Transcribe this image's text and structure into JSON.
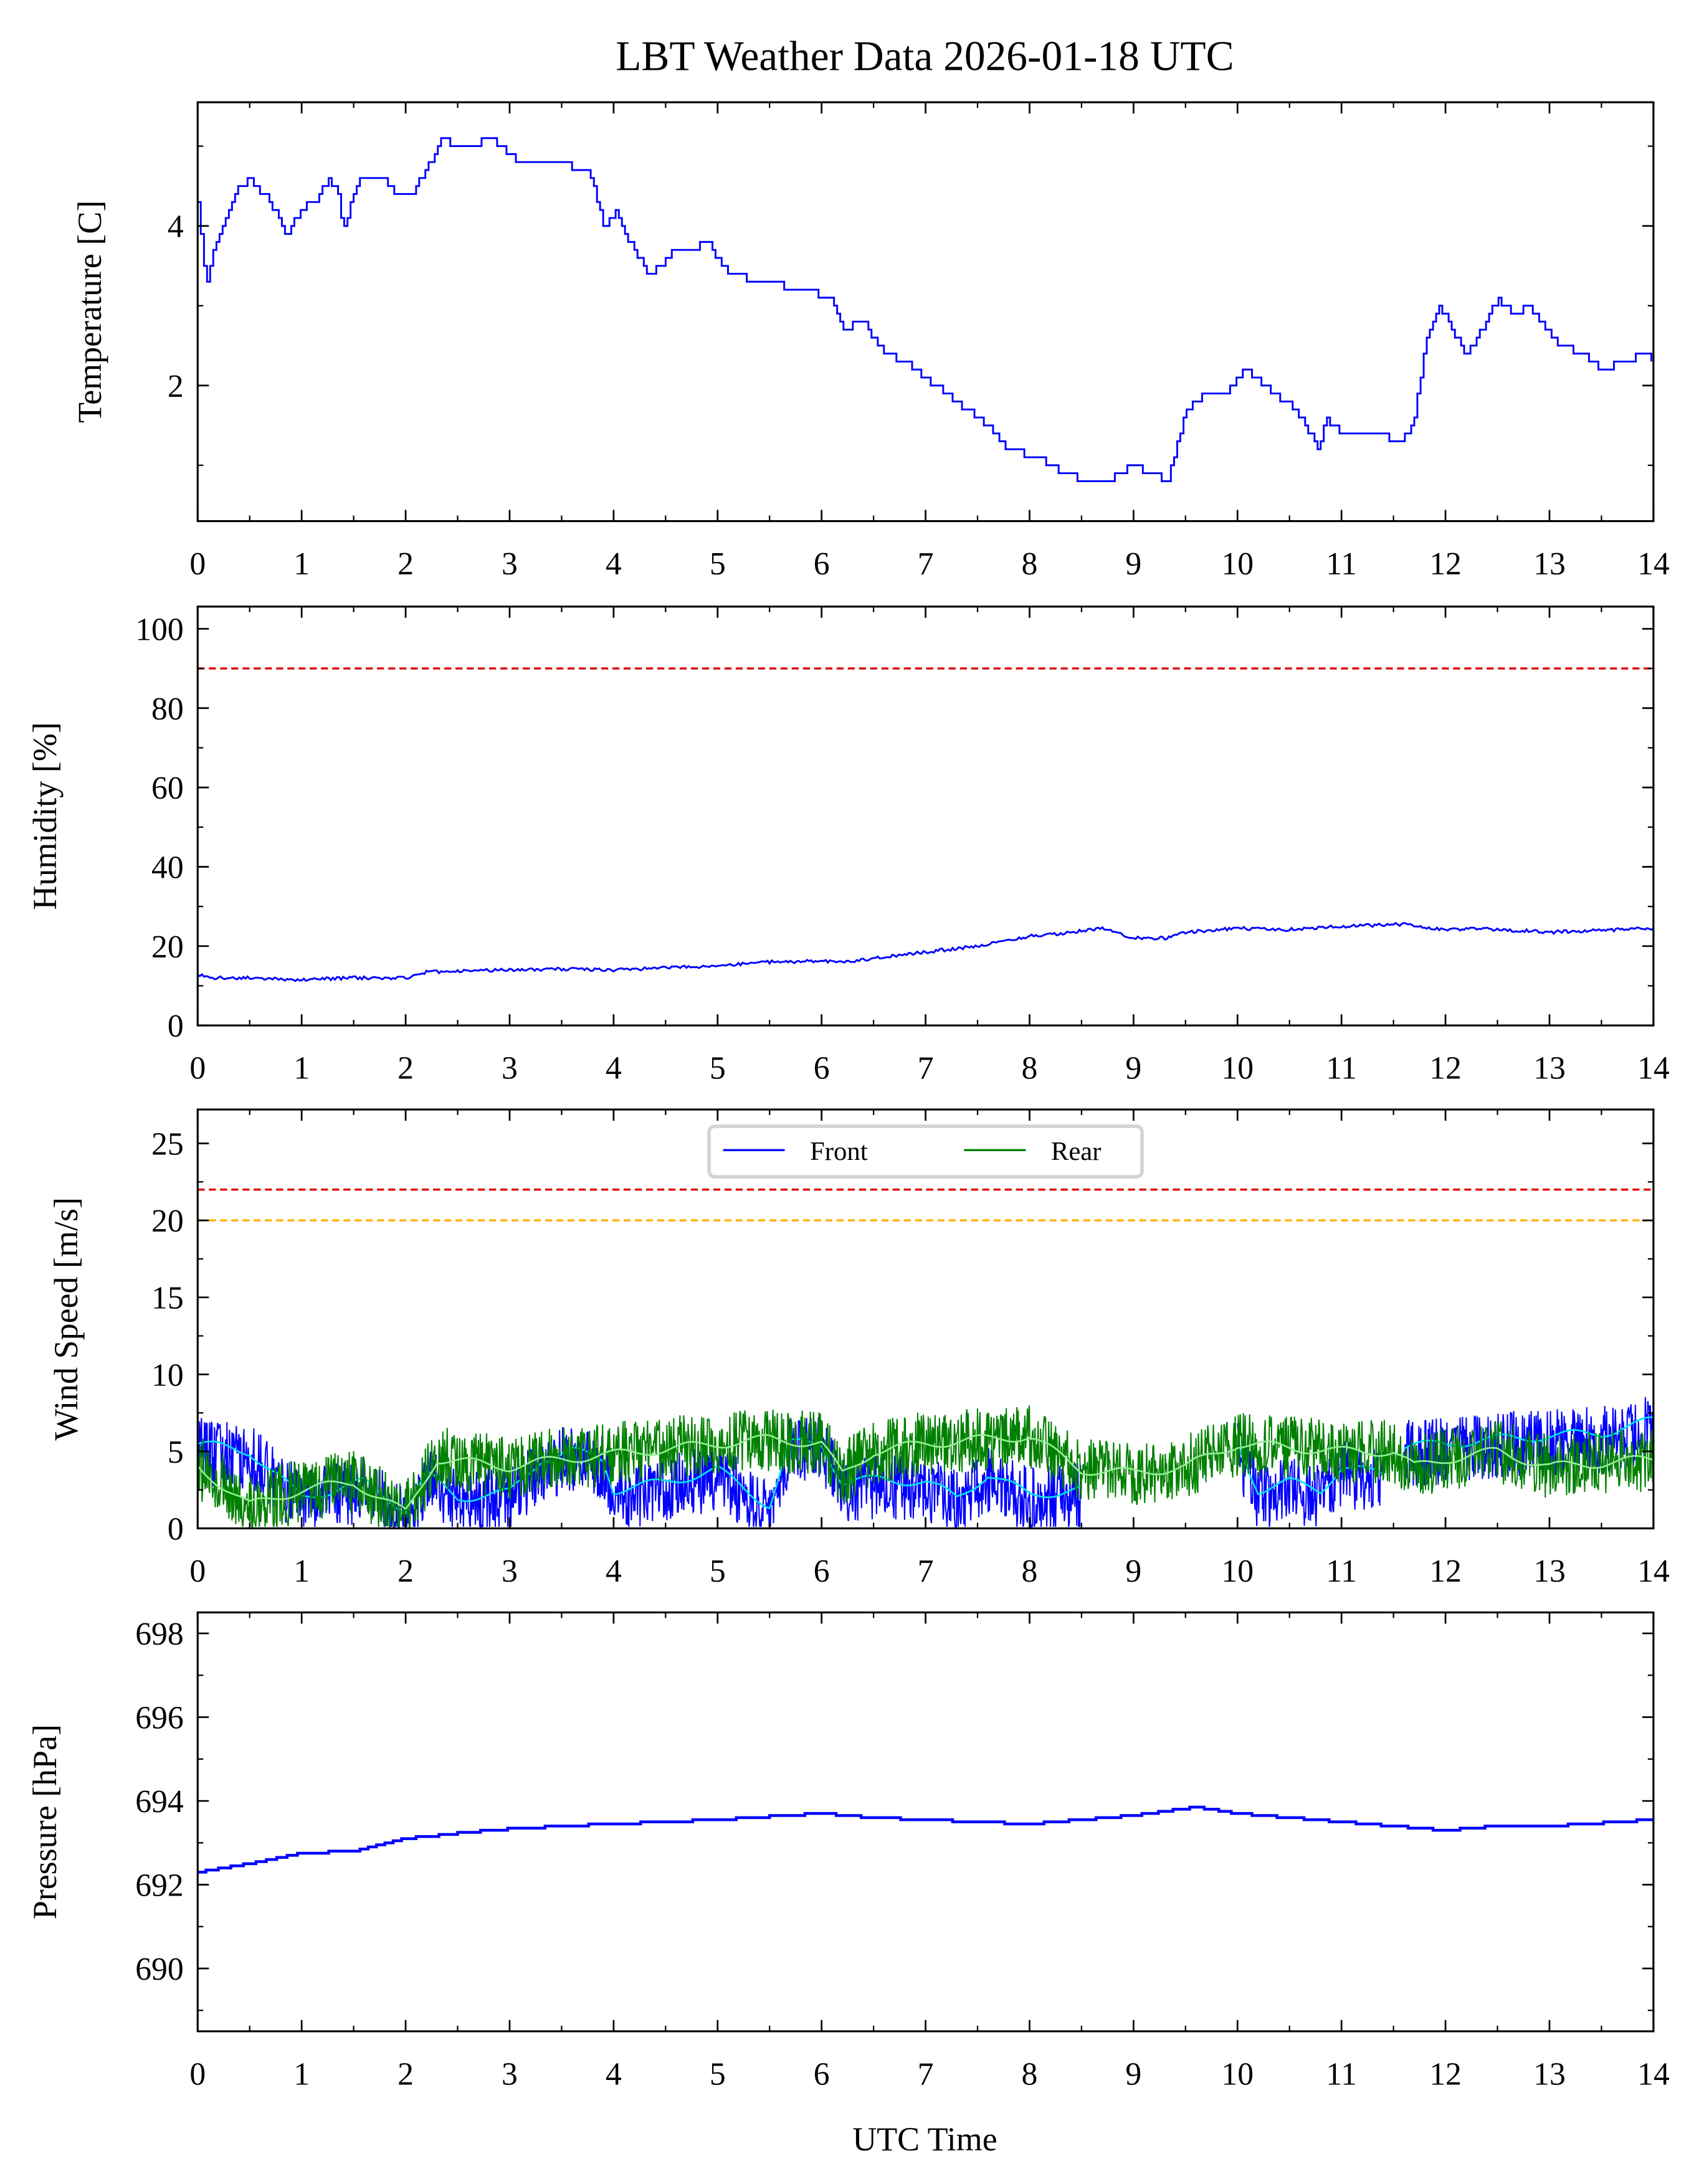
{
  "title": "LBT Weather Data 2026-01-18 UTC",
  "xlabel": "UTC Time",
  "chart_data": [
    {
      "type": "line",
      "id": "temperature",
      "ylabel": "Temperature [C]",
      "xlim": [
        0,
        14
      ],
      "ylim": [
        0.3,
        5.55
      ],
      "xticks": [
        0,
        1,
        2,
        3,
        4,
        5,
        6,
        7,
        8,
        9,
        10,
        11,
        12,
        13,
        14
      ],
      "yticks": [
        2,
        4
      ],
      "series": [
        {
          "name": "Temperature",
          "color": "#0000ff",
          "x": [
            0,
            0.08,
            0.2,
            0.4,
            0.5,
            0.7,
            0.86,
            1.0,
            1.15,
            1.27,
            1.35,
            1.4,
            1.5,
            1.58,
            1.8,
            1.9,
            2.05,
            2.15,
            2.36,
            2.5,
            2.8,
            3.0,
            3.1,
            3.4,
            3.76,
            3.9,
            4.03,
            4.15,
            4.33,
            4.45,
            4.57,
            4.75,
            4.9,
            5.1,
            5.45,
            5.8,
            6.1,
            6.2,
            6.4,
            6.6,
            6.8,
            7.0,
            7.2,
            7.4,
            7.6,
            7.8,
            8.07,
            8.35,
            8.68,
            9.0,
            9.33,
            9.5,
            9.7,
            9.9,
            10.07,
            10.35,
            10.55,
            10.7,
            10.77,
            10.85,
            11.0,
            11.3,
            11.58,
            11.7,
            11.8,
            11.95,
            12.1,
            12.2,
            12.35,
            12.5,
            12.65,
            12.8,
            12.9,
            13.1,
            13.3,
            13.5,
            13.7,
            13.9,
            14.0
          ],
          "y": [
            4.3,
            3.3,
            3.9,
            4.5,
            4.6,
            4.3,
            3.9,
            4.2,
            4.35,
            4.6,
            4.4,
            3.9,
            4.4,
            4.6,
            4.6,
            4.4,
            4.4,
            4.6,
            5.1,
            4.95,
            5.1,
            4.9,
            4.8,
            4.8,
            4.7,
            4.0,
            4.2,
            3.8,
            3.4,
            3.5,
            3.7,
            3.7,
            3.8,
            3.4,
            3.3,
            3.2,
            3.1,
            2.7,
            2.8,
            2.4,
            2.3,
            2.1,
            1.9,
            1.7,
            1.5,
            1.2,
            1.1,
            0.9,
            0.75,
            1.0,
            0.8,
            1.7,
            1.9,
            1.95,
            2.2,
            1.9,
            1.7,
            1.4,
            1.2,
            1.6,
            1.4,
            1.4,
            1.3,
            1.6,
            2.5,
            3.0,
            2.6,
            2.4,
            2.7,
            3.1,
            2.9,
            3.0,
            2.8,
            2.5,
            2.4,
            2.2,
            2.3,
            2.4,
            2.3
          ]
        }
      ]
    },
    {
      "type": "line",
      "id": "humidity",
      "ylabel": "Humidity [%]",
      "xlim": [
        0,
        14
      ],
      "ylim": [
        0,
        105.6
      ],
      "xticks": [
        0,
        1,
        2,
        3,
        4,
        5,
        6,
        7,
        8,
        9,
        10,
        11,
        12,
        13,
        14
      ],
      "yticks": [
        0,
        20,
        40,
        60,
        80,
        100
      ],
      "hlines": [
        {
          "y": 90,
          "color": "#e00000"
        }
      ],
      "series": [
        {
          "name": "Humidity",
          "color": "#0000ff",
          "x": [
            0,
            0.1,
            0.5,
            1.0,
            1.5,
            2.0,
            2.2,
            3.0,
            3.5,
            4.0,
            4.5,
            5.0,
            5.5,
            6.0,
            6.3,
            6.5,
            7.0,
            7.5,
            8.0,
            8.4,
            8.7,
            9.0,
            9.3,
            9.5,
            10.0,
            10.5,
            11.0,
            11.6,
            12.0,
            12.3,
            13.0,
            13.5,
            14.0
          ],
          "y": [
            13,
            12,
            12,
            11.5,
            12,
            12,
            13.5,
            14,
            14.2,
            14,
            14.5,
            15,
            16,
            16.2,
            16,
            17,
            18.5,
            20,
            22.5,
            23.5,
            24.5,
            22,
            22,
            23.5,
            24.5,
            24.2,
            25,
            25.5,
            24,
            24.5,
            23.5,
            24,
            24.5
          ]
        }
      ]
    },
    {
      "type": "line",
      "id": "wind",
      "ylabel": "Wind Speed [m/s]",
      "xlim": [
        0,
        14
      ],
      "ylim": [
        0,
        27.2
      ],
      "xticks": [
        0,
        1,
        2,
        3,
        4,
        5,
        6,
        7,
        8,
        9,
        10,
        11,
        12,
        13,
        14
      ],
      "yticks": [
        0,
        5,
        10,
        15,
        20,
        25
      ],
      "hlines": [
        {
          "y": 22,
          "color": "#e00000"
        },
        {
          "y": 20,
          "color": "#ffb000"
        }
      ],
      "legend": {
        "position": "top-center",
        "entries": [
          "Front",
          "Rear"
        ]
      },
      "series": [
        {
          "name": "Front",
          "color": "#0000ff",
          "smooth_color": "#00e5ee",
          "x": [
            0,
            0.5,
            1.0,
            1.3,
            1.6,
            2.0,
            2.2,
            2.5,
            3.0,
            3.3,
            3.6,
            3.9,
            4.0,
            4.5,
            5.0,
            5.5,
            5.7,
            6.0,
            6.2,
            6.6,
            7.0,
            7.3,
            7.6,
            8.0,
            8.5
          ],
          "y": [
            5.5,
            5.0,
            2.0,
            2.5,
            3.0,
            1.2,
            3.5,
            2.0,
            2.3,
            4.5,
            5.0,
            4.5,
            2.5,
            3.0,
            3.8,
            1.5,
            5.5,
            5.5,
            3.0,
            3.2,
            3.0,
            2.0,
            3.5,
            2.2,
            2.5
          ]
        },
        {
          "name": "Front",
          "color": "#0000ff",
          "smooth_color": "#00e5ee",
          "x": [
            10.0,
            10.2,
            10.5,
            10.8,
            11.0,
            11.4
          ],
          "y": [
            5.5,
            2.5,
            3.0,
            2.5,
            4.0,
            3.5
          ]
        },
        {
          "name": "Front",
          "color": "#0000ff",
          "smooth_color": "#00e5ee",
          "x": [
            11.6,
            12.0,
            12.5,
            13.0,
            13.5,
            14.0
          ],
          "y": [
            5.3,
            5.5,
            5.8,
            6.0,
            6.2,
            7.0
          ]
        },
        {
          "name": "Rear",
          "color": "#008000",
          "smooth_color": "#90ee90",
          "x": [
            0,
            0.5,
            1.0,
            1.5,
            2.0,
            2.3,
            3.0,
            3.5,
            4.0,
            5.0,
            5.5,
            6.0,
            6.2,
            6.5,
            7.0,
            8.0,
            8.5,
            9.0,
            9.5,
            10.0,
            11.0,
            11.5,
            11.7,
            12.0,
            12.5,
            13.0,
            14.0
          ],
          "y": [
            4.0,
            1.5,
            2.5,
            3.0,
            1.0,
            4.5,
            4.0,
            4.5,
            4.8,
            5.5,
            5.8,
            5.5,
            3.5,
            5.0,
            5.5,
            6.0,
            3.8,
            3.6,
            4.0,
            5.5,
            5.0,
            5.0,
            4.0,
            4.5,
            5.0,
            4.0,
            4.5
          ]
        }
      ]
    },
    {
      "type": "line",
      "id": "pressure",
      "ylabel": "Pressure [hPa]",
      "xlim": [
        0,
        14
      ],
      "ylim": [
        688.5,
        698.5
      ],
      "xticks": [
        0,
        1,
        2,
        3,
        4,
        5,
        6,
        7,
        8,
        9,
        10,
        11,
        12,
        13,
        14
      ],
      "yticks": [
        690,
        692,
        694,
        696,
        698
      ],
      "series": [
        {
          "name": "Pressure",
          "color": "#0000ff",
          "x": [
            0,
            0.5,
            1.0,
            1.5,
            2.0,
            2.8,
            3.5,
            4.0,
            5.0,
            6.0,
            6.5,
            7.0,
            8.0,
            8.5,
            9.0,
            9.6,
            10.0,
            10.5,
            11.0,
            12.0,
            12.5,
            13.0,
            14.0
          ],
          "y": [
            692.3,
            692.5,
            692.75,
            692.8,
            693.1,
            693.3,
            693.4,
            693.45,
            693.55,
            693.7,
            693.6,
            693.55,
            693.45,
            693.55,
            693.65,
            693.85,
            693.7,
            693.6,
            693.5,
            693.3,
            693.4,
            693.4,
            693.55
          ]
        }
      ]
    }
  ]
}
